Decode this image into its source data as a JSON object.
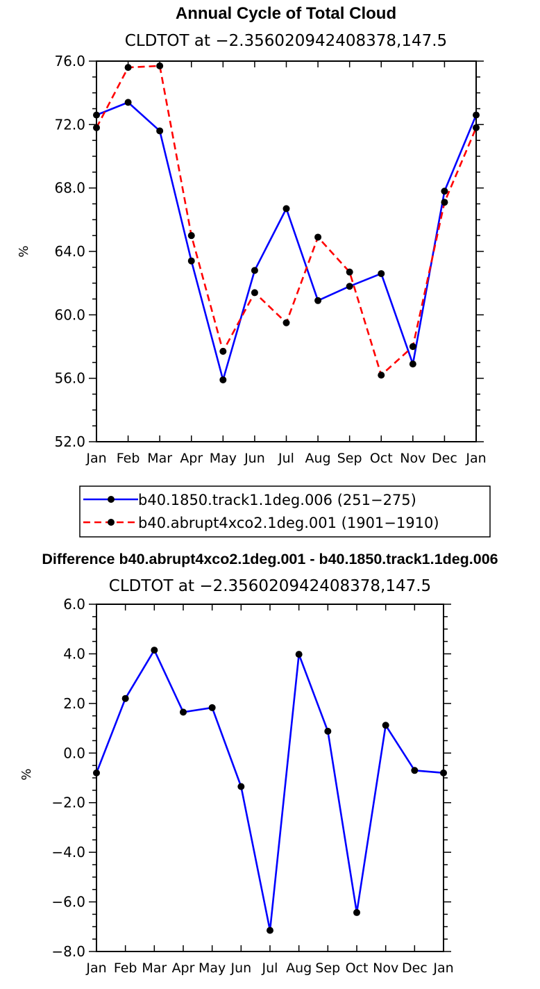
{
  "chart_data": [
    {
      "type": "line",
      "title": "Annual Cycle of Total Cloud",
      "subtitle": "CLDTOT at −2.356020942408378,147.5",
      "xlabel": "",
      "ylabel": "%",
      "categories": [
        "Jan",
        "Feb",
        "Mar",
        "Apr",
        "May",
        "Jun",
        "Jul",
        "Aug",
        "Sep",
        "Oct",
        "Nov",
        "Dec",
        "Jan"
      ],
      "ylim": [
        52.0,
        76.0
      ],
      "yticks": [
        "52.0",
        "56.0",
        "60.0",
        "64.0",
        "68.0",
        "72.0",
        "76.0"
      ],
      "ytick_values": [
        52,
        56,
        60,
        64,
        68,
        72,
        76
      ],
      "series": [
        {
          "name": "b40.1850.track1.1deg.006 (251−275)",
          "color": "#0000ff",
          "style": "solid",
          "values": [
            72.6,
            73.4,
            71.6,
            63.4,
            55.9,
            62.8,
            66.7,
            60.9,
            61.8,
            62.6,
            56.9,
            67.8,
            72.6
          ]
        },
        {
          "name": "b40.abrupt4xco2.1deg.001 (1901−1910)",
          "color": "#ff0000",
          "style": "dashed",
          "values": [
            71.8,
            75.6,
            75.7,
            65.0,
            57.7,
            61.4,
            59.5,
            64.9,
            62.7,
            56.2,
            58.0,
            67.1,
            71.8
          ]
        }
      ],
      "legend": "below"
    },
    {
      "type": "line",
      "title": "Difference b40.abrupt4xco2.1deg.001 - b40.1850.track1.1deg.006",
      "subtitle": "CLDTOT at −2.356020942408378,147.5",
      "xlabel": "",
      "ylabel": "%",
      "categories": [
        "Jan",
        "Feb",
        "Mar",
        "Apr",
        "May",
        "Jun",
        "Jul",
        "Aug",
        "Sep",
        "Oct",
        "Nov",
        "Dec",
        "Jan"
      ],
      "ylim": [
        -8.0,
        6.0
      ],
      "yticks": [
        "−8.0",
        "−6.0",
        "−4.0",
        "−2.0",
        "0.0",
        "2.0",
        "4.0",
        "6.0"
      ],
      "ytick_values": [
        -8,
        -6,
        -4,
        -2,
        0,
        2,
        4,
        6
      ],
      "series": [
        {
          "name": "Difference",
          "color": "#0000ff",
          "style": "solid",
          "values": [
            -0.8,
            2.2,
            4.15,
            1.65,
            1.83,
            -1.35,
            -7.15,
            3.98,
            0.88,
            -6.43,
            1.12,
            -0.7,
            -0.8
          ]
        }
      ]
    }
  ]
}
